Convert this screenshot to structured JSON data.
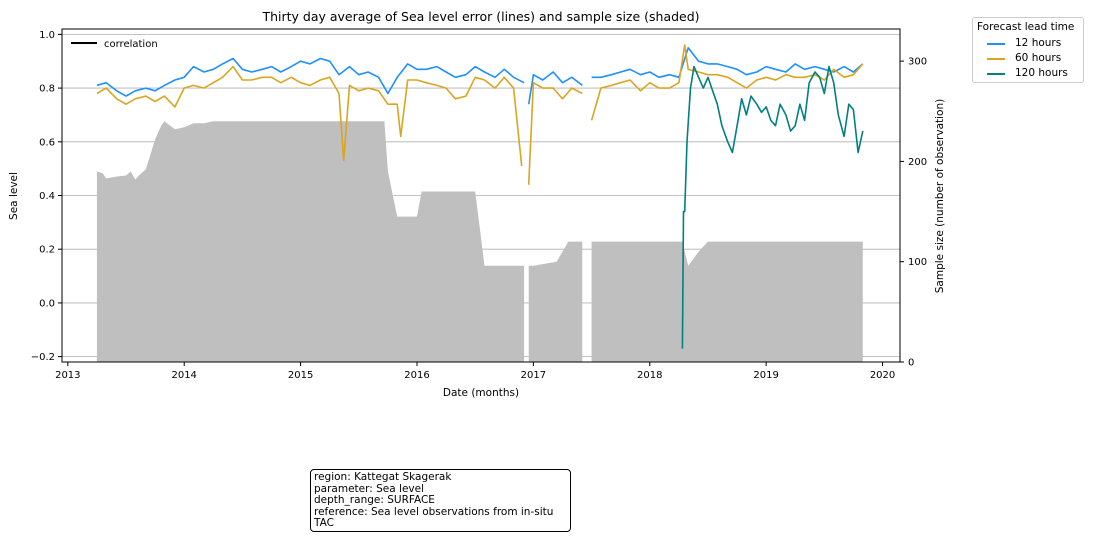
{
  "chart_data": {
    "type": "line",
    "title": "Thirty day average of Sea level error (lines) and sample size (shaded)",
    "xlabel": "Date (months)",
    "ylabel": "Sea level",
    "y2label": "Sample size (number of observation)",
    "xlim": [
      2012.95,
      2020.15
    ],
    "ylim": [
      -0.22,
      1.02
    ],
    "y2lim": [
      0,
      332
    ],
    "x_ticks": [
      2013,
      2014,
      2015,
      2016,
      2017,
      2018,
      2019,
      2020
    ],
    "y_ticks": [
      -0.2,
      0.0,
      0.2,
      0.4,
      0.6,
      0.8,
      1.0
    ],
    "y2_ticks": [
      0,
      100,
      200,
      300
    ],
    "grid": "horizontal",
    "inner_legend": {
      "label": "correlation",
      "placement": "top-left"
    },
    "legend": {
      "title": "Forecast lead time",
      "placement": "outside-top-right"
    },
    "series": [
      {
        "name": "12 hours",
        "color": "#1e90ff",
        "x": [
          2013.25,
          2013.33,
          2013.42,
          2013.5,
          2013.58,
          2013.67,
          2013.75,
          2013.83,
          2013.92,
          2014.0,
          2014.08,
          2014.17,
          2014.25,
          2014.33,
          2014.42,
          2014.5,
          2014.58,
          2014.67,
          2014.75,
          2014.83,
          2014.92,
          2015.0,
          2015.08,
          2015.17,
          2015.25,
          2015.33,
          2015.42,
          2015.5,
          2015.58,
          2015.67,
          2015.75,
          2015.83,
          2015.92,
          2016.0,
          2016.08,
          2016.17,
          2016.25,
          2016.33,
          2016.42,
          2016.5,
          2016.58,
          2016.67,
          2016.75,
          2016.83,
          2016.92,
          null,
          2016.96,
          2017.0,
          2017.08,
          2017.17,
          2017.25,
          2017.33,
          2017.42,
          null,
          2017.5,
          2017.58,
          2017.67,
          2017.75,
          2017.83,
          2017.92,
          2018.0,
          2018.08,
          2018.17,
          2018.25,
          2018.33,
          2018.42,
          2018.5,
          2018.58,
          2018.67,
          2018.75,
          2018.83,
          2018.92,
          2019.0,
          2019.08,
          2019.17,
          2019.25,
          2019.33,
          2019.42,
          2019.5,
          2019.58,
          2019.67,
          2019.75,
          2019.83
        ],
        "values": [
          0.81,
          0.82,
          0.79,
          0.77,
          0.79,
          0.8,
          0.79,
          0.81,
          0.83,
          0.84,
          0.88,
          0.86,
          0.87,
          0.89,
          0.91,
          0.87,
          0.86,
          0.87,
          0.88,
          0.86,
          0.88,
          0.9,
          0.89,
          0.91,
          0.9,
          0.85,
          0.88,
          0.85,
          0.86,
          0.84,
          0.78,
          0.84,
          0.89,
          0.87,
          0.87,
          0.88,
          0.86,
          0.84,
          0.85,
          0.88,
          0.86,
          0.84,
          0.87,
          0.84,
          0.82,
          null,
          0.74,
          0.85,
          0.83,
          0.86,
          0.82,
          0.84,
          0.81,
          null,
          0.84,
          0.84,
          0.85,
          0.86,
          0.87,
          0.85,
          0.86,
          0.84,
          0.85,
          0.84,
          0.95,
          0.9,
          0.89,
          0.89,
          0.88,
          0.87,
          0.85,
          0.86,
          0.88,
          0.87,
          0.86,
          0.89,
          0.87,
          0.88,
          0.87,
          0.86,
          0.88,
          0.86,
          0.89
        ]
      },
      {
        "name": "60 hours",
        "color": "#daa520",
        "x": [
          2013.25,
          2013.33,
          2013.42,
          2013.5,
          2013.58,
          2013.67,
          2013.75,
          2013.83,
          2013.92,
          2014.0,
          2014.08,
          2014.17,
          2014.25,
          2014.33,
          2014.42,
          2014.5,
          2014.58,
          2014.67,
          2014.75,
          2014.83,
          2014.92,
          2015.0,
          2015.08,
          2015.17,
          2015.25,
          2015.33,
          2015.37,
          2015.42,
          2015.5,
          2015.58,
          2015.67,
          2015.75,
          2015.83,
          2015.86,
          2015.92,
          2016.0,
          2016.08,
          2016.17,
          2016.25,
          2016.33,
          2016.42,
          2016.5,
          2016.58,
          2016.67,
          2016.75,
          2016.83,
          2016.9,
          null,
          2016.96,
          2017.0,
          2017.08,
          2017.17,
          2017.25,
          2017.33,
          2017.42,
          null,
          2017.5,
          2017.58,
          2017.67,
          2017.75,
          2017.83,
          2017.92,
          2018.0,
          2018.08,
          2018.17,
          2018.25,
          2018.3,
          2018.33,
          2018.42,
          2018.5,
          2018.58,
          2018.67,
          2018.75,
          2018.83,
          2018.92,
          2019.0,
          2019.08,
          2019.17,
          2019.25,
          2019.33,
          2019.42,
          2019.5,
          2019.58,
          2019.67,
          2019.75,
          2019.83
        ],
        "values": [
          0.78,
          0.8,
          0.76,
          0.74,
          0.76,
          0.77,
          0.75,
          0.77,
          0.73,
          0.8,
          0.81,
          0.8,
          0.82,
          0.84,
          0.88,
          0.83,
          0.83,
          0.84,
          0.84,
          0.82,
          0.84,
          0.82,
          0.81,
          0.83,
          0.84,
          0.78,
          0.53,
          0.81,
          0.79,
          0.8,
          0.79,
          0.74,
          0.74,
          0.62,
          0.83,
          0.83,
          0.82,
          0.81,
          0.8,
          0.76,
          0.77,
          0.84,
          0.83,
          0.8,
          0.84,
          0.8,
          0.51,
          null,
          0.44,
          0.82,
          0.8,
          0.8,
          0.76,
          0.8,
          0.78,
          null,
          0.68,
          0.8,
          0.81,
          0.82,
          0.83,
          0.79,
          0.82,
          0.8,
          0.8,
          0.82,
          0.96,
          0.87,
          0.86,
          0.85,
          0.85,
          0.84,
          0.82,
          0.8,
          0.83,
          0.84,
          0.83,
          0.85,
          0.84,
          0.84,
          0.85,
          0.83,
          0.87,
          0.84,
          0.85,
          0.89
        ]
      },
      {
        "name": "120 hours",
        "color": "#008080",
        "x": [
          2018.28,
          2018.29,
          2018.3,
          2018.32,
          2018.35,
          2018.38,
          2018.42,
          2018.46,
          2018.5,
          2018.54,
          2018.58,
          2018.62,
          2018.67,
          2018.71,
          2018.75,
          2018.79,
          2018.83,
          2018.87,
          2018.92,
          2018.96,
          2019.0,
          2019.04,
          2019.08,
          2019.12,
          2019.17,
          2019.21,
          2019.25,
          2019.29,
          2019.33,
          2019.37,
          2019.42,
          2019.46,
          2019.5,
          2019.54,
          2019.58,
          2019.62,
          2019.67,
          2019.71,
          2019.75,
          2019.79,
          2019.83
        ],
        "values": [
          -0.17,
          0.34,
          0.34,
          0.6,
          0.8,
          0.88,
          0.84,
          0.8,
          0.84,
          0.79,
          0.74,
          0.66,
          0.6,
          0.56,
          0.66,
          0.76,
          0.7,
          0.77,
          0.74,
          0.71,
          0.73,
          0.68,
          0.66,
          0.74,
          0.7,
          0.64,
          0.66,
          0.74,
          0.68,
          0.82,
          0.86,
          0.84,
          0.78,
          0.88,
          0.82,
          0.7,
          0.62,
          0.74,
          0.72,
          0.56,
          0.64
        ]
      }
    ],
    "sample_size": {
      "name": "sample size",
      "color": "#bfbfbf",
      "x": [
        2013.25,
        2013.3,
        2013.33,
        2013.42,
        2013.5,
        2013.54,
        2013.58,
        2013.62,
        2013.67,
        2013.75,
        2013.8,
        2013.83,
        2013.92,
        2014.0,
        2014.08,
        2014.17,
        2014.25,
        2014.33,
        2014.5,
        2015.0,
        2015.5,
        2015.72,
        2015.75,
        2015.83,
        2016.0,
        2016.04,
        2016.5,
        2016.58,
        2016.92,
        null,
        2016.96,
        2017.0,
        2017.2,
        2017.3,
        2017.42,
        null,
        2017.5,
        2018.0,
        2018.28,
        2018.33,
        2018.42,
        2018.5,
        2019.0,
        2019.83
      ],
      "values": [
        190,
        188,
        183,
        185,
        186,
        190,
        182,
        187,
        192,
        222,
        235,
        240,
        232,
        234,
        238,
        238,
        240,
        240,
        240,
        240,
        240,
        240,
        190,
        145,
        145,
        170,
        170,
        96,
        96,
        null,
        96,
        96,
        100,
        120,
        120,
        null,
        120,
        120,
        120,
        96,
        110,
        120,
        120,
        120
      ]
    }
  },
  "info_box": [
    "region: Kattegat Skagerak",
    "parameter: Sea level",
    "depth_range: SURFACE",
    "reference: Sea level observations from in-situ",
    "TAC"
  ]
}
